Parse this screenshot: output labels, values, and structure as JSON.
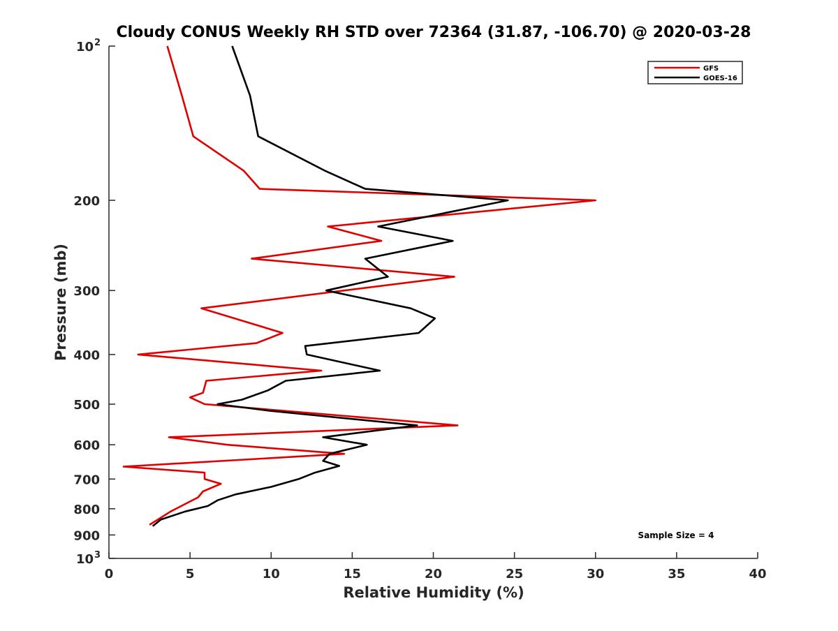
{
  "chart_data": {
    "type": "line",
    "title": "Cloudy CONUS Weekly RH STD over 72364 (31.87, -106.70) @ 2020-03-28",
    "xlabel": "Relative Humidity (%)",
    "ylabel": "Pressure (mb)",
    "xlim": [
      0,
      40
    ],
    "ylim": [
      100,
      1000
    ],
    "y_scale": "log",
    "y_reversed": true,
    "grid": false,
    "legend_position": "top-right",
    "x_ticks": [
      "0",
      "5",
      "10",
      "15",
      "20",
      "25",
      "30",
      "35",
      "40"
    ],
    "x_tick_values": [
      0,
      5,
      10,
      15,
      20,
      25,
      30,
      35,
      40
    ],
    "y_tick_values": [
      100,
      200,
      300,
      400,
      500,
      600,
      700,
      800,
      900,
      1000
    ],
    "y_ticks": [
      {
        "value": 100,
        "base": "10",
        "exp": "2"
      },
      {
        "value": 200,
        "base": "200",
        "exp": ""
      },
      {
        "value": 300,
        "base": "300",
        "exp": ""
      },
      {
        "value": 400,
        "base": "400",
        "exp": ""
      },
      {
        "value": 500,
        "base": "500",
        "exp": ""
      },
      {
        "value": 600,
        "base": "600",
        "exp": ""
      },
      {
        "value": 700,
        "base": "700",
        "exp": ""
      },
      {
        "value": 800,
        "base": "800",
        "exp": ""
      },
      {
        "value": 900,
        "base": "900",
        "exp": ""
      },
      {
        "value": 1000,
        "base": "10",
        "exp": "3"
      }
    ],
    "annotation": "Sample Size = 4",
    "series": [
      {
        "name": "GFS",
        "color": "#e00000",
        "points": [
          [
            3.6,
            100
          ],
          [
            4.5,
            125
          ],
          [
            5.2,
            150
          ],
          [
            8.3,
            175
          ],
          [
            9.3,
            190
          ],
          [
            30,
            200
          ],
          [
            13.5,
            225
          ],
          [
            16.8,
            240
          ],
          [
            8.8,
            260
          ],
          [
            21.3,
            282
          ],
          [
            5.7,
            325
          ],
          [
            10.7,
            363
          ],
          [
            9.1,
            380
          ],
          [
            1.8,
            400
          ],
          [
            13.1,
            430
          ],
          [
            6.0,
            450
          ],
          [
            5.8,
            475
          ],
          [
            5.0,
            485
          ],
          [
            5.9,
            500
          ],
          [
            21.5,
            550
          ],
          [
            3.7,
            580
          ],
          [
            7.3,
            600
          ],
          [
            14.5,
            625
          ],
          [
            0.9,
            662
          ],
          [
            5.9,
            680
          ],
          [
            5.9,
            700
          ],
          [
            6.9,
            715
          ],
          [
            5.8,
            740
          ],
          [
            5.5,
            760
          ],
          [
            3.8,
            810
          ],
          [
            2.5,
            860
          ]
        ]
      },
      {
        "name": "GOES-16",
        "color": "#000000",
        "points": [
          [
            7.6,
            100
          ],
          [
            8.7,
            125
          ],
          [
            9.2,
            150
          ],
          [
            13.3,
            175
          ],
          [
            15.8,
            190
          ],
          [
            24.6,
            200
          ],
          [
            16.6,
            225
          ],
          [
            21.2,
            240
          ],
          [
            15.8,
            260
          ],
          [
            17.2,
            282
          ],
          [
            13.4,
            300
          ],
          [
            18.6,
            325
          ],
          [
            20.1,
            340
          ],
          [
            19.1,
            363
          ],
          [
            12.1,
            385
          ],
          [
            12.2,
            400
          ],
          [
            16.7,
            430
          ],
          [
            10.9,
            450
          ],
          [
            9.8,
            470
          ],
          [
            8.2,
            490
          ],
          [
            6.7,
            500
          ],
          [
            9.9,
            515
          ],
          [
            19.0,
            550
          ],
          [
            13.2,
            580
          ],
          [
            15.9,
            600
          ],
          [
            13.6,
            625
          ],
          [
            13.2,
            645
          ],
          [
            14.2,
            660
          ],
          [
            12.7,
            680
          ],
          [
            11.7,
            700
          ],
          [
            10.0,
            725
          ],
          [
            7.8,
            750
          ],
          [
            6.7,
            770
          ],
          [
            6.1,
            790
          ],
          [
            4.7,
            810
          ],
          [
            3.2,
            840
          ],
          [
            2.7,
            865
          ]
        ]
      }
    ]
  }
}
